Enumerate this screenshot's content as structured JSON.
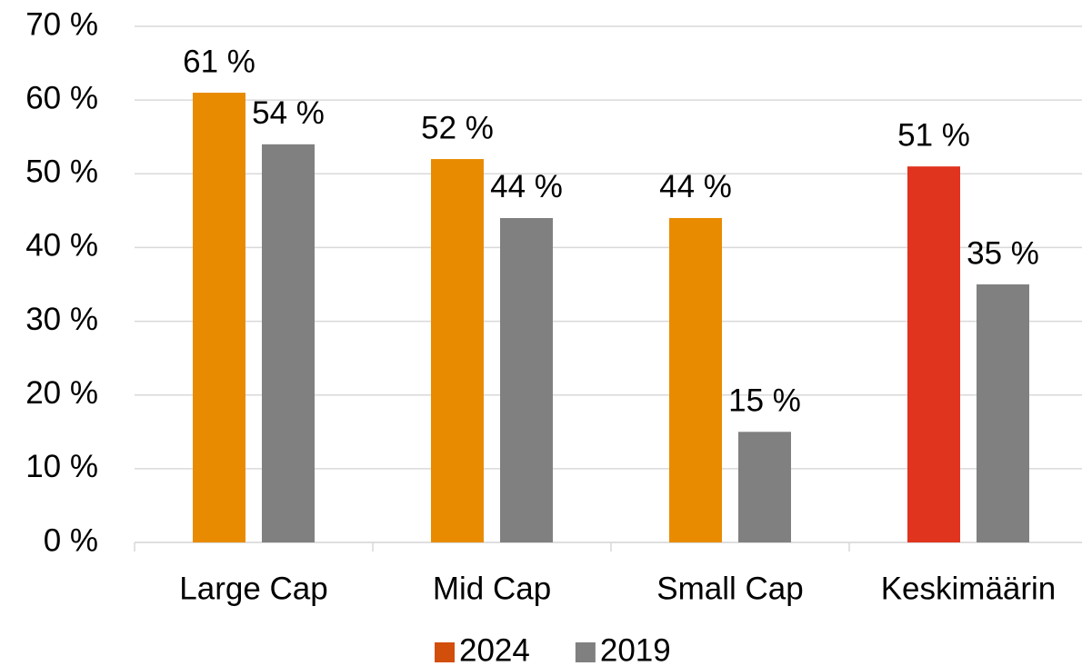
{
  "chart_data": {
    "type": "bar",
    "categories": [
      "Large Cap",
      "Mid Cap",
      "Small Cap",
      "Keskimäärin"
    ],
    "series": [
      {
        "name": "2024",
        "color": "#d24e0b",
        "point_colors": [
          "#e98b00",
          "#e98b00",
          "#e98b00",
          "#e0341e"
        ],
        "values": [
          61,
          52,
          44,
          51
        ],
        "value_labels": [
          "61 %",
          "52 %",
          "44 %",
          "51 %"
        ]
      },
      {
        "name": "2019",
        "color": "#808080",
        "values": [
          54,
          44,
          15,
          35
        ],
        "value_labels": [
          "54 %",
          "44 %",
          "15 %",
          "35 %"
        ]
      }
    ],
    "ylim": [
      0,
      70
    ],
    "yticks": [
      {
        "value": 0,
        "label": "0 %"
      },
      {
        "value": 10,
        "label": "10 %"
      },
      {
        "value": 20,
        "label": "20 %"
      },
      {
        "value": 30,
        "label": "30 %"
      },
      {
        "value": 40,
        "label": "40 %"
      },
      {
        "value": 50,
        "label": "50 %"
      },
      {
        "value": 60,
        "label": "60 %"
      },
      {
        "value": 70,
        "label": "70 %"
      }
    ],
    "grid": true,
    "legend": "bottom"
  }
}
